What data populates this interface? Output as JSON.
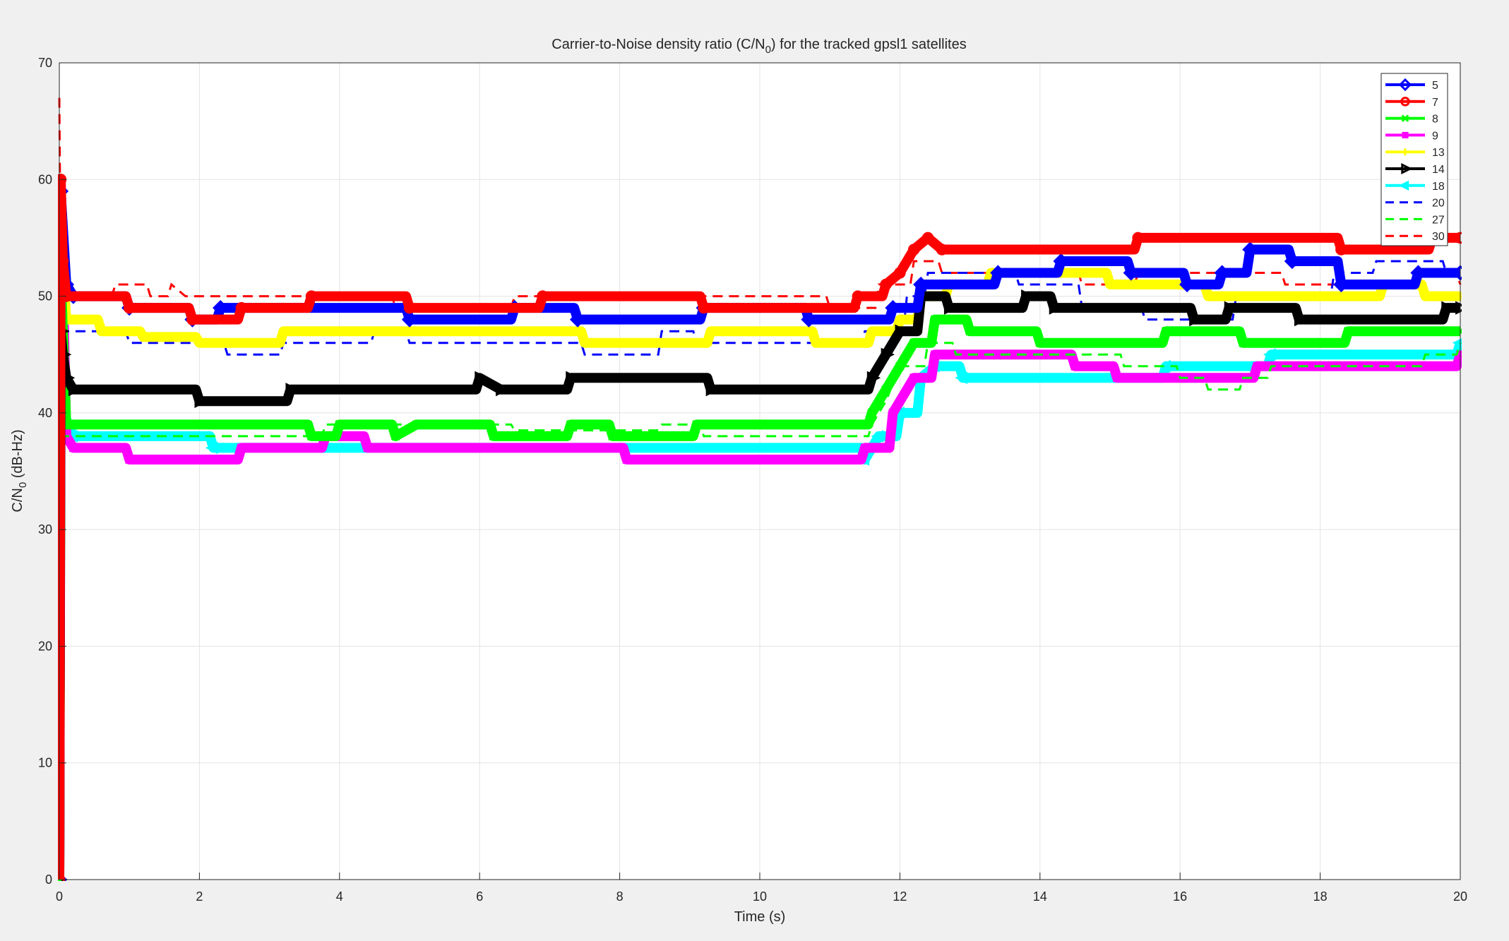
{
  "chart_data": {
    "type": "line",
    "title_main": "Carrier-to-Noise density ratio (C/N",
    "title_sub": "0",
    "title_rest": ") for the tracked gpsl1 satellites",
    "xlabel": "Time (s)",
    "ylabel_main": "C/N",
    "ylabel_sub": "0",
    "ylabel_rest": " (dB-Hz)",
    "xlim": [
      0,
      20
    ],
    "ylim": [
      0,
      70
    ],
    "x_ticks": [
      "0",
      "2",
      "4",
      "6",
      "8",
      "10",
      "12",
      "14",
      "16",
      "18",
      "20"
    ],
    "y_ticks": [
      "0",
      "10",
      "20",
      "30",
      "40",
      "50",
      "60",
      "70"
    ],
    "grid": true,
    "legend_position": "top-right",
    "series": [
      {
        "name": "5",
        "color": "#0000ff",
        "style": "solid",
        "marker": "diamond",
        "points": [
          [
            0,
            0
          ],
          [
            0.02,
            59
          ],
          [
            0.1,
            51
          ],
          [
            0.2,
            50
          ],
          [
            1,
            49
          ],
          [
            1.9,
            48
          ],
          [
            2.3,
            49
          ],
          [
            5,
            48
          ],
          [
            6.5,
            49
          ],
          [
            7.4,
            48
          ],
          [
            9.2,
            49
          ],
          [
            10.7,
            48
          ],
          [
            11.9,
            49
          ],
          [
            12.3,
            51
          ],
          [
            13.4,
            52
          ],
          [
            14.3,
            53
          ],
          [
            15.3,
            52
          ],
          [
            16.1,
            51
          ],
          [
            16.6,
            52
          ],
          [
            17,
            54
          ],
          [
            17.6,
            53
          ],
          [
            18.3,
            51
          ],
          [
            19.4,
            52
          ],
          [
            20,
            52
          ]
        ]
      },
      {
        "name": "7",
        "color": "#ff0000",
        "style": "solid",
        "marker": "circle",
        "points": [
          [
            0,
            0
          ],
          [
            0.02,
            60
          ],
          [
            0.05,
            53
          ],
          [
            0.1,
            50
          ],
          [
            1,
            49
          ],
          [
            1.9,
            48
          ],
          [
            2.6,
            49
          ],
          [
            3.6,
            50
          ],
          [
            5,
            49
          ],
          [
            6.9,
            50
          ],
          [
            9.2,
            49
          ],
          [
            11.4,
            50
          ],
          [
            11.8,
            51
          ],
          [
            12,
            52
          ],
          [
            12.2,
            54
          ],
          [
            12.4,
            55
          ],
          [
            12.6,
            54
          ],
          [
            15.4,
            55
          ],
          [
            18.3,
            54
          ],
          [
            19.6,
            55
          ],
          [
            20,
            55
          ]
        ]
      },
      {
        "name": "8",
        "color": "#00ff00",
        "style": "solid",
        "marker": "x",
        "points": [
          [
            0,
            0
          ],
          [
            0.02,
            52
          ],
          [
            0.1,
            39
          ],
          [
            3.6,
            38
          ],
          [
            4,
            39
          ],
          [
            4.8,
            38
          ],
          [
            5.1,
            39
          ],
          [
            6.2,
            38
          ],
          [
            7.3,
            39
          ],
          [
            7.9,
            38
          ],
          [
            9.1,
            39
          ],
          [
            11.6,
            40
          ],
          [
            11.8,
            42
          ],
          [
            12,
            44
          ],
          [
            12.2,
            46
          ],
          [
            12.5,
            48
          ],
          [
            13,
            47
          ],
          [
            14,
            46
          ],
          [
            15.8,
            47
          ],
          [
            16.9,
            46
          ],
          [
            18.4,
            47
          ],
          [
            20,
            47
          ]
        ]
      },
      {
        "name": "9",
        "color": "#ff00ff",
        "style": "solid",
        "marker": "square",
        "points": [
          [
            0,
            0
          ],
          [
            0.02,
            60
          ],
          [
            0.1,
            38
          ],
          [
            0.2,
            37
          ],
          [
            1,
            36
          ],
          [
            2.6,
            37
          ],
          [
            3.8,
            38
          ],
          [
            4.4,
            37
          ],
          [
            8.1,
            36
          ],
          [
            11.5,
            37
          ],
          [
            11.9,
            40
          ],
          [
            12.2,
            43
          ],
          [
            12.5,
            45
          ],
          [
            14.5,
            44
          ],
          [
            15.1,
            43
          ],
          [
            17.1,
            44
          ],
          [
            18.4,
            44
          ],
          [
            20,
            45
          ]
        ]
      },
      {
        "name": "13",
        "color": "#ffff00",
        "style": "solid",
        "marker": "plus",
        "points": [
          [
            0,
            0
          ],
          [
            0.02,
            55
          ],
          [
            0.1,
            48
          ],
          [
            0.6,
            47
          ],
          [
            1.2,
            46.5
          ],
          [
            2,
            46
          ],
          [
            3.2,
            47
          ],
          [
            5,
            47
          ],
          [
            7.5,
            46
          ],
          [
            9.3,
            47
          ],
          [
            10.8,
            46
          ],
          [
            11.6,
            47
          ],
          [
            12,
            48
          ],
          [
            12.3,
            50
          ],
          [
            12.7,
            51
          ],
          [
            13.3,
            52
          ],
          [
            15,
            51
          ],
          [
            16.4,
            50
          ],
          [
            17.8,
            50
          ],
          [
            18.9,
            51
          ],
          [
            19.5,
            50
          ],
          [
            20,
            50
          ]
        ]
      },
      {
        "name": "14",
        "color": "#000000",
        "style": "solid",
        "marker": "triangle-right",
        "points": [
          [
            0,
            0
          ],
          [
            0.02,
            47
          ],
          [
            0.05,
            45
          ],
          [
            0.1,
            43
          ],
          [
            0.2,
            42
          ],
          [
            2,
            41
          ],
          [
            3.3,
            42
          ],
          [
            6,
            43
          ],
          [
            6.3,
            42
          ],
          [
            7.3,
            43
          ],
          [
            9.3,
            42
          ],
          [
            11.6,
            43
          ],
          [
            11.8,
            45
          ],
          [
            12,
            47
          ],
          [
            12.3,
            50
          ],
          [
            12.7,
            49
          ],
          [
            13.8,
            50
          ],
          [
            14.2,
            49
          ],
          [
            16.2,
            48
          ],
          [
            16.7,
            49
          ],
          [
            17.7,
            48
          ],
          [
            19.8,
            49
          ],
          [
            20,
            49
          ]
        ]
      },
      {
        "name": "18",
        "color": "#00ffff",
        "style": "solid",
        "marker": "triangle-left",
        "points": [
          [
            0,
            0
          ],
          [
            0.02,
            56
          ],
          [
            0.06,
            40
          ],
          [
            0.2,
            38
          ],
          [
            2.2,
            37
          ],
          [
            11.5,
            36
          ],
          [
            11.7,
            38
          ],
          [
            12,
            40
          ],
          [
            12.3,
            43
          ],
          [
            12.5,
            44
          ],
          [
            12.9,
            43
          ],
          [
            15.8,
            44
          ],
          [
            17.3,
            45
          ],
          [
            20,
            46
          ]
        ]
      },
      {
        "name": "20",
        "color": "#0000ff",
        "style": "dash",
        "marker": "none",
        "points": [
          [
            0,
            47
          ],
          [
            1,
            46
          ],
          [
            2.4,
            45
          ],
          [
            3.2,
            46
          ],
          [
            4.5,
            47
          ],
          [
            5,
            46
          ],
          [
            7.5,
            45
          ],
          [
            8.6,
            47
          ],
          [
            9.1,
            46
          ],
          [
            11.5,
            47
          ],
          [
            12.1,
            50
          ],
          [
            12.4,
            52
          ],
          [
            13.7,
            51
          ],
          [
            14.6,
            49
          ],
          [
            15.5,
            48
          ],
          [
            16.8,
            50
          ],
          [
            18.2,
            52
          ],
          [
            18.8,
            53
          ],
          [
            19.8,
            52
          ],
          [
            20,
            52
          ]
        ]
      },
      {
        "name": "27",
        "color": "#00ff00",
        "style": "dash",
        "marker": "none",
        "points": [
          [
            0,
            38
          ],
          [
            3,
            38
          ],
          [
            3.8,
            39
          ],
          [
            6.5,
            38.5
          ],
          [
            8.6,
            39
          ],
          [
            9.2,
            38
          ],
          [
            11.6,
            39
          ],
          [
            11.8,
            41
          ],
          [
            12,
            44
          ],
          [
            12.4,
            46
          ],
          [
            12.8,
            45
          ],
          [
            15.2,
            44
          ],
          [
            16,
            43
          ],
          [
            16.4,
            42
          ],
          [
            16.9,
            43
          ],
          [
            17.3,
            44
          ],
          [
            19.5,
            45
          ],
          [
            20,
            46
          ]
        ]
      },
      {
        "name": "30",
        "color": "#ff0000",
        "style": "dash",
        "marker": "none",
        "points": [
          [
            0,
            67
          ],
          [
            0.02,
            52
          ],
          [
            0.1,
            50
          ],
          [
            0.8,
            51
          ],
          [
            1.3,
            50
          ],
          [
            1.6,
            51
          ],
          [
            1.8,
            50
          ],
          [
            4.8,
            49
          ],
          [
            6.5,
            50
          ],
          [
            8.9,
            50
          ],
          [
            11,
            49
          ],
          [
            11.7,
            51
          ],
          [
            12.2,
            53
          ],
          [
            12.6,
            52
          ],
          [
            14.6,
            51
          ],
          [
            15.4,
            52
          ],
          [
            17.5,
            51
          ],
          [
            19.4,
            52
          ],
          [
            20,
            51
          ]
        ]
      }
    ]
  }
}
